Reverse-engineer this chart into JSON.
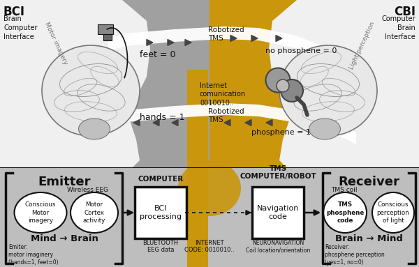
{
  "bg_gray": "#a0a0a0",
  "bg_gold": "#c9960c",
  "bg_bottom": "#bebebe",
  "bg_white_silhouette": "#f0f0f0",
  "black": "#111111",
  "white": "#ffffff",
  "gray_dark": "#444444",
  "gray_mid": "#777777",
  "gray_light": "#cccccc",
  "gold": "#c9960c",
  "gold_text": "#c9960c",
  "arrow_dark": "#333333",
  "bci_title": "BCI",
  "bci_sub": "Brain\nComputer\nInterface",
  "cbi_title": "CBI",
  "cbi_sub": "Computer\nBrain\nInterface",
  "motor_imagery_label": "Motor imagery",
  "light_perception_label": "Light perception",
  "feet_label": "feet = 0",
  "hands_label": "hands = 1",
  "robotized_tms": "Robotized\nTMS",
  "no_phosphene": "no phosphene = 0",
  "phosphene": "phosphene = 1",
  "internet_comm": "Internet\ncomunication\n0010010..",
  "emitter_title": "Emitter",
  "receiver_title": "Receiver",
  "computer_title": "COMPUTER",
  "tms_robot_title": "TMS\nCOMPUTER/ROBOT",
  "wireless_eeg": "Wireless EEG",
  "tms_coil_label": "TMS coil",
  "circle1": "Conscious\nMotor\nimagery",
  "circle2": "Motor\nCortex\nactivity",
  "circle3": "TMS\nphosphene\ncode",
  "circle4": "Conscious\nperception\nof light",
  "mind_brain": "Mind → Brain",
  "brain_mind": "Brain → Mind",
  "bci_proc": "BCI\nprocessing",
  "nav_code": "Navigation\ncode",
  "emitter_sub": "Emiter:\nmotor imaginery\n(hands=1, feet=0)",
  "bluetooth": "BLUETOOTH\nEEG data",
  "internet": "INTERNET\nCODE: 0010010..",
  "neuronavigation": "NEURONAVIGATION\nCoil location/orientation",
  "receiver_sub": "Receiver:\nphosphene perception\n(yes=1, no=0)"
}
